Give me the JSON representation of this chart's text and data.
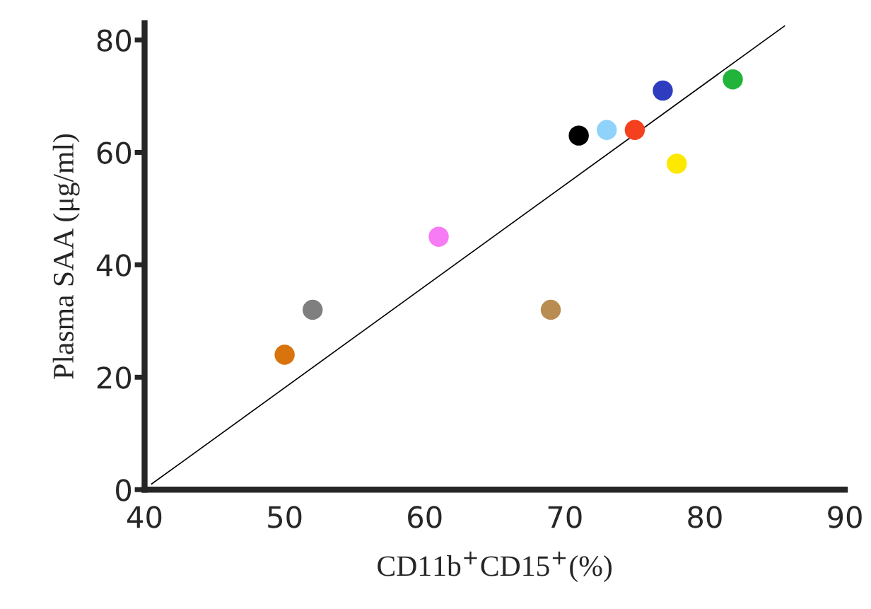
{
  "chart_data": {
    "type": "scatter",
    "xlabel": "CD11b$^{+}$CD15$^{+}$(%)",
    "ylabel": "Plasma SAA (μg/ml)",
    "xlim": [
      40,
      90
    ],
    "ylim": [
      0,
      83
    ],
    "xticks": [
      40,
      50,
      60,
      70,
      80,
      90
    ],
    "yticks": [
      0,
      20,
      40,
      60,
      80
    ],
    "grid": false,
    "legend": false,
    "series": [
      {
        "marker": "circle",
        "x": [
          50,
          52,
          61,
          69,
          71,
          73,
          75,
          77,
          78,
          82
        ],
        "values": [
          24,
          32,
          45,
          32,
          63,
          64,
          64,
          71,
          58,
          73
        ],
        "colors": [
          "#d9730d",
          "#7f7f7f",
          "#f67bf5",
          "#b98c52",
          "#000000",
          "#8fd3fb",
          "#f5401f",
          "#2e3dbf",
          "#fde800",
          "#22b43a"
        ]
      },
      {
        "type": "line",
        "x": [
          40.5,
          85.7
        ],
        "values": [
          1,
          82.5
        ],
        "color": "#000000",
        "line_style": "solid",
        "marker": "none"
      }
    ]
  }
}
